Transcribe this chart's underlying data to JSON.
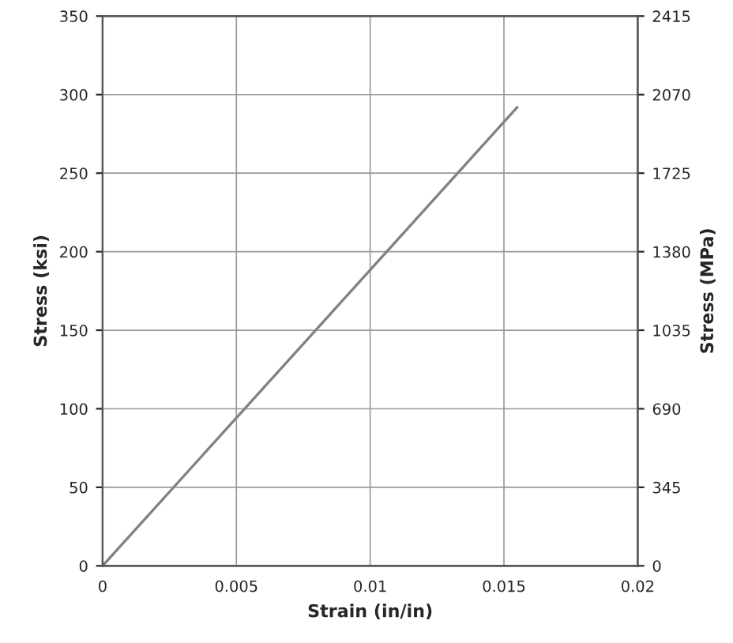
{
  "chart_data": {
    "type": "line",
    "xlabel": "Strain (in/in)",
    "ylabel": "Stress (ksi)",
    "y2label": "Stress (MPa)",
    "series": [
      {
        "color": "#8a7f80",
        "x": [
          0,
          0.0155
        ],
        "values": [
          0,
          292
        ]
      }
    ],
    "xlim": [
      0,
      0.02
    ],
    "xticks": [
      0,
      0.005,
      0.01,
      0.015,
      0.02
    ],
    "ylim": [
      0,
      350
    ],
    "yticks": [
      0,
      50,
      100,
      150,
      200,
      250,
      300,
      350
    ],
    "y2lim": [
      0,
      2415
    ],
    "y2ticks": [
      0,
      345,
      690,
      1035,
      1380,
      1725,
      2070,
      2415
    ],
    "grid": true,
    "line_style": "solid",
    "marker": "none"
  }
}
